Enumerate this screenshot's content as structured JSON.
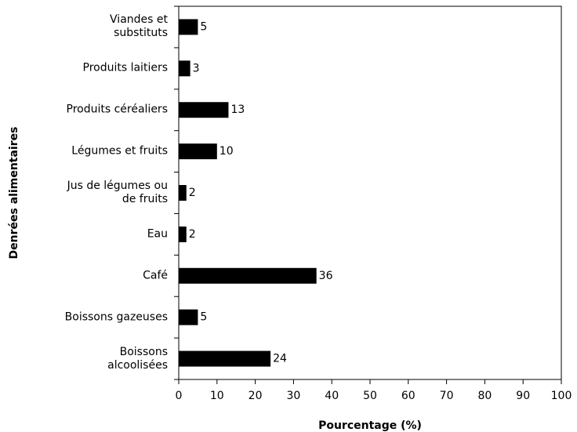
{
  "chart_data": {
    "type": "barh",
    "categories": [
      "Viandes et\nsubstituts",
      "Produits laitiers",
      "Produits céréaliers",
      "Légumes et fruits",
      "Jus de légumes ou\nde fruits",
      "Eau",
      "Café",
      "Boissons gazeuses",
      "Boissons\nalcoolisées"
    ],
    "values": [
      5,
      3,
      13,
      10,
      2,
      2,
      36,
      5,
      24
    ],
    "color": "#000000",
    "xlabel": "Pourcentage (%)",
    "ylabel": "Denrées alimentaires",
    "xlim": [
      0,
      100
    ],
    "xticks": [
      0,
      10,
      20,
      30,
      40,
      50,
      60,
      70,
      80,
      90,
      100
    ],
    "grid": false
  }
}
